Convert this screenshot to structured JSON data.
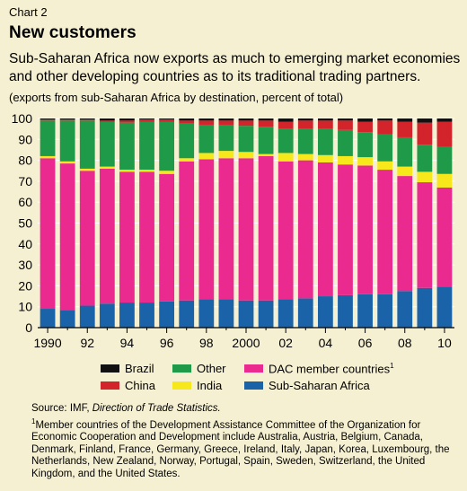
{
  "header": {
    "chart_label": "Chart 2",
    "title": "New customers",
    "subtitle": "Sub-Saharan Africa now exports as much to emerging market economies and other developing countries as to its traditional trading partners.",
    "note": "(exports from sub-Saharan Africa by destination, percent of total)"
  },
  "legend": {
    "brazil": "Brazil",
    "other": "Other",
    "dac": "DAC member countries",
    "dac_mark": "1",
    "china": "China",
    "india": "India",
    "ssa": "Sub-Saharan Africa"
  },
  "footer": {
    "source_prefix": "Source: IMF, ",
    "source_title": "Direction of Trade Statistics.",
    "footnote_mark": "1",
    "footnote": "Member countries of the Development Assistance Committee of the Organization for Economic Cooperation and Development include Australia, Austria, Belgium, Canada, Denmark, Finland, France, Germany, Greece, Ireland, Italy, Japan, Korea, Luxembourg, the Netherlands, New Zealand, Norway, Portugal, Spain, Sweden, Switzerland, the United Kingdom, and the United States."
  },
  "chart_data": {
    "type": "bar",
    "stacked": true,
    "x": [
      1990,
      1991,
      1992,
      1993,
      1994,
      1995,
      1996,
      1997,
      1998,
      1999,
      2000,
      2001,
      2002,
      2003,
      2004,
      2005,
      2006,
      2007,
      2008,
      2009,
      2010
    ],
    "x_tick_labels": [
      "1990",
      "92",
      "94",
      "96",
      "98",
      "2000",
      "02",
      "04",
      "06",
      "08",
      "10"
    ],
    "y_ticks": [
      0,
      10,
      20,
      30,
      40,
      50,
      60,
      70,
      80,
      90,
      100
    ],
    "ylim": [
      0,
      100
    ],
    "grid": true,
    "series": [
      {
        "name": "Sub-Saharan Africa",
        "color": "#1b63a8",
        "values": [
          9,
          8.5,
          10.5,
          11.5,
          12,
          12,
          12.5,
          13,
          13.5,
          13.5,
          13,
          13,
          13.5,
          14,
          15,
          15.5,
          16,
          16,
          17.5,
          19,
          19.5
        ]
      },
      {
        "name": "DAC member countries",
        "color": "#ea2a8f",
        "values": [
          72,
          70,
          64.5,
          64.5,
          62.5,
          62.5,
          61,
          66.5,
          67,
          67.5,
          68,
          69,
          66,
          66,
          64,
          62.5,
          61.5,
          59.5,
          55,
          50.5,
          47.5
        ]
      },
      {
        "name": "India",
        "color": "#f7e81b",
        "values": [
          1,
          1,
          1,
          1,
          1,
          1,
          1.5,
          1.5,
          3,
          3.5,
          3,
          1,
          4,
          3,
          3.5,
          4,
          4,
          4,
          4.5,
          5,
          6.5
        ]
      },
      {
        "name": "Other",
        "color": "#1f9a48",
        "values": [
          17,
          19.5,
          23,
          21.5,
          22.5,
          23,
          23.5,
          16.5,
          13.5,
          12.5,
          12.5,
          13,
          11.5,
          12,
          12.5,
          12.5,
          12,
          13,
          14,
          13,
          13
        ]
      },
      {
        "name": "China",
        "color": "#d3242c",
        "values": [
          0.5,
          0.5,
          0.5,
          0.5,
          1,
          1,
          1,
          1.5,
          2,
          2,
          2.5,
          3,
          3.5,
          4,
          4,
          4.5,
          5,
          6.5,
          7.5,
          10.5,
          12
        ]
      },
      {
        "name": "Brazil",
        "color": "#111111",
        "values": [
          0.5,
          0.5,
          0.5,
          1,
          1,
          0.5,
          0.5,
          1,
          1,
          1,
          1,
          1,
          1.5,
          1,
          1,
          1,
          1.5,
          1,
          1.5,
          2,
          1.5
        ]
      }
    ]
  }
}
